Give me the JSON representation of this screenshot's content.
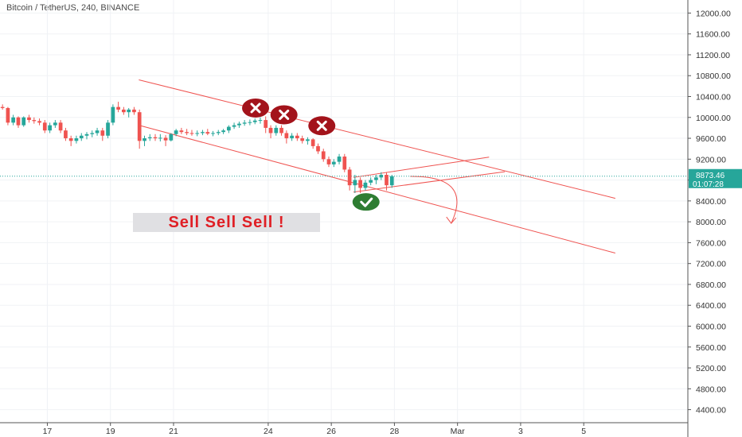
{
  "header": {
    "title": "Bitcoin / TetherUS, 240, BINANCE"
  },
  "annotation": {
    "text": "Sell Sell Sell !"
  },
  "price_badge": {
    "price": "8873.46",
    "countdown": "01:07:28"
  },
  "colors": {
    "up": "#26a69a",
    "down": "#ef5350",
    "trend": "#ef5350",
    "x_marker": "#a3131b",
    "check_marker": "#2e7d32",
    "badge": "#26a69a",
    "grid": "#f0f2f5",
    "dotted_price": "#26a69a"
  },
  "chart_data": {
    "type": "candlestick",
    "title": "Bitcoin / TetherUS, 240, BINANCE",
    "ylim": [
      4150,
      12250
    ],
    "y_ticks": [
      4400,
      4800,
      5200,
      5600,
      6000,
      6400,
      6800,
      7200,
      7600,
      8000,
      8400,
      8800,
      9200,
      9600,
      10000,
      10400,
      10800,
      11200,
      11600,
      12000
    ],
    "y_tick_labels": [
      "4400.00",
      "4800.00",
      "5200.00",
      "5600.00",
      "6000.00",
      "6400.00",
      "6800.00",
      "7200.00",
      "7600.00",
      "8000.00",
      "8400.00",
      "8800.00",
      "9200.00",
      "9600.00",
      "10000.00",
      "10400.00",
      "10800.00",
      "11200.00",
      "11600.00",
      "12000.00"
    ],
    "x_domain": [
      15.5,
      37.3
    ],
    "x_ticks": [
      {
        "t": 17,
        "label": "17"
      },
      {
        "t": 19,
        "label": "19"
      },
      {
        "t": 21,
        "label": "21"
      },
      {
        "t": 24,
        "label": "24"
      },
      {
        "t": 26,
        "label": "26"
      },
      {
        "t": 28,
        "label": "28"
      },
      {
        "t": 30,
        "label": "Mar"
      },
      {
        "t": 32,
        "label": "3"
      },
      {
        "t": 34,
        "label": "5"
      }
    ],
    "last_price": 8873.46,
    "candles": [
      [
        15.58,
        10200,
        10250,
        10150,
        10180
      ],
      [
        15.75,
        10180,
        10200,
        9850,
        9900
      ],
      [
        15.92,
        9900,
        10050,
        9850,
        10000
      ],
      [
        16.08,
        10000,
        10020,
        9800,
        9850
      ],
      [
        16.25,
        9850,
        10020,
        9820,
        10000
      ],
      [
        16.42,
        10000,
        10050,
        9900,
        9950
      ],
      [
        16.58,
        9950,
        10000,
        9880,
        9930
      ],
      [
        16.75,
        9930,
        9980,
        9850,
        9900
      ],
      [
        16.92,
        9900,
        9950,
        9700,
        9750
      ],
      [
        17.08,
        9750,
        9900,
        9700,
        9850
      ],
      [
        17.25,
        9850,
        9950,
        9800,
        9900
      ],
      [
        17.42,
        9900,
        9950,
        9700,
        9750
      ],
      [
        17.58,
        9750,
        9800,
        9550,
        9600
      ],
      [
        17.75,
        9600,
        9650,
        9450,
        9550
      ],
      [
        17.92,
        9550,
        9650,
        9500,
        9600
      ],
      [
        18.08,
        9600,
        9700,
        9550,
        9650
      ],
      [
        18.25,
        9650,
        9720,
        9580,
        9680
      ],
      [
        18.42,
        9680,
        9750,
        9620,
        9700
      ],
      [
        18.58,
        9700,
        9800,
        9650,
        9750
      ],
      [
        18.75,
        9750,
        9800,
        9550,
        9650
      ],
      [
        18.92,
        9650,
        9950,
        9600,
        9900
      ],
      [
        19.08,
        9900,
        10250,
        9850,
        10200
      ],
      [
        19.25,
        10200,
        10300,
        10100,
        10150
      ],
      [
        19.42,
        10150,
        10200,
        10050,
        10100
      ],
      [
        19.58,
        10100,
        10180,
        10000,
        10150
      ],
      [
        19.75,
        10150,
        10200,
        10050,
        10100
      ],
      [
        19.92,
        10100,
        10150,
        9400,
        9550
      ],
      [
        20.08,
        9550,
        9650,
        9450,
        9600
      ],
      [
        20.25,
        9600,
        9680,
        9550,
        9620
      ],
      [
        20.42,
        9620,
        9680,
        9550,
        9600
      ],
      [
        20.58,
        9600,
        9680,
        9540,
        9610
      ],
      [
        20.75,
        9610,
        9660,
        9450,
        9560
      ],
      [
        20.92,
        9560,
        9700,
        9540,
        9680
      ],
      [
        21.08,
        9680,
        9780,
        9640,
        9750
      ],
      [
        21.25,
        9750,
        9800,
        9680,
        9720
      ],
      [
        21.42,
        9720,
        9780,
        9660,
        9700
      ],
      [
        21.58,
        9700,
        9760,
        9650,
        9690
      ],
      [
        21.75,
        9690,
        9750,
        9640,
        9700
      ],
      [
        21.92,
        9700,
        9760,
        9660,
        9720
      ],
      [
        22.08,
        9720,
        9780,
        9660,
        9690
      ],
      [
        22.25,
        9690,
        9740,
        9640,
        9700
      ],
      [
        22.42,
        9700,
        9760,
        9660,
        9720
      ],
      [
        22.58,
        9720,
        9780,
        9680,
        9750
      ],
      [
        22.75,
        9750,
        9850,
        9700,
        9820
      ],
      [
        22.92,
        9820,
        9900,
        9780,
        9850
      ],
      [
        23.08,
        9850,
        9920,
        9800,
        9880
      ],
      [
        23.25,
        9880,
        9950,
        9840,
        9900
      ],
      [
        23.42,
        9900,
        9960,
        9850,
        9910
      ],
      [
        23.58,
        9910,
        9980,
        9870,
        9940
      ],
      [
        23.75,
        9940,
        10000,
        9880,
        9950
      ],
      [
        23.92,
        9950,
        10020,
        9700,
        9800
      ],
      [
        24.08,
        9800,
        9850,
        9600,
        9700
      ],
      [
        24.25,
        9700,
        9850,
        9650,
        9800
      ],
      [
        24.42,
        9800,
        9850,
        9650,
        9700
      ],
      [
        24.58,
        9700,
        9750,
        9500,
        9600
      ],
      [
        24.75,
        9600,
        9700,
        9550,
        9650
      ],
      [
        24.92,
        9650,
        9700,
        9550,
        9600
      ],
      [
        25.08,
        9600,
        9650,
        9500,
        9550
      ],
      [
        25.25,
        9550,
        9620,
        9480,
        9580
      ],
      [
        25.42,
        9580,
        9600,
        9400,
        9450
      ],
      [
        25.58,
        9450,
        9500,
        9300,
        9350
      ],
      [
        25.75,
        9350,
        9400,
        9150,
        9200
      ],
      [
        25.92,
        9200,
        9250,
        9050,
        9100
      ],
      [
        26.08,
        9100,
        9200,
        9050,
        9150
      ],
      [
        26.25,
        9150,
        9300,
        9100,
        9250
      ],
      [
        26.42,
        9250,
        9300,
        8950,
        9000
      ],
      [
        26.58,
        9000,
        9050,
        8600,
        8700
      ],
      [
        26.75,
        8700,
        8900,
        8550,
        8800
      ],
      [
        26.92,
        8800,
        8850,
        8550,
        8650
      ],
      [
        27.08,
        8650,
        8800,
        8600,
        8750
      ],
      [
        27.25,
        8750,
        8850,
        8700,
        8800
      ],
      [
        27.42,
        8800,
        8900,
        8720,
        8850
      ],
      [
        27.58,
        8850,
        8950,
        8800,
        8900
      ],
      [
        27.75,
        8900,
        8950,
        8600,
        8700
      ],
      [
        27.92,
        8700,
        8900,
        8650,
        8873.46
      ]
    ],
    "trendlines": [
      {
        "name": "upper-channel",
        "from": [
          19.9,
          10720
        ],
        "to": [
          35.0,
          8450
        ]
      },
      {
        "name": "lower-channel",
        "from": [
          19.9,
          9850
        ],
        "to": [
          35.0,
          7400
        ]
      },
      {
        "name": "wedge-upper",
        "from": [
          26.7,
          8850
        ],
        "to": [
          31.0,
          9240
        ]
      },
      {
        "name": "wedge-lower",
        "from": [
          26.7,
          8570
        ],
        "to": [
          31.5,
          8960
        ]
      }
    ],
    "arrow": {
      "from": [
        28.5,
        8870
      ],
      "control": [
        30.5,
        8880
      ],
      "to": [
        29.8,
        7970
      ]
    },
    "x_markers": [
      [
        23.6,
        10180
      ],
      [
        24.5,
        10050
      ],
      [
        25.7,
        9840
      ]
    ],
    "check_marker": [
      27.1,
      8380
    ]
  }
}
